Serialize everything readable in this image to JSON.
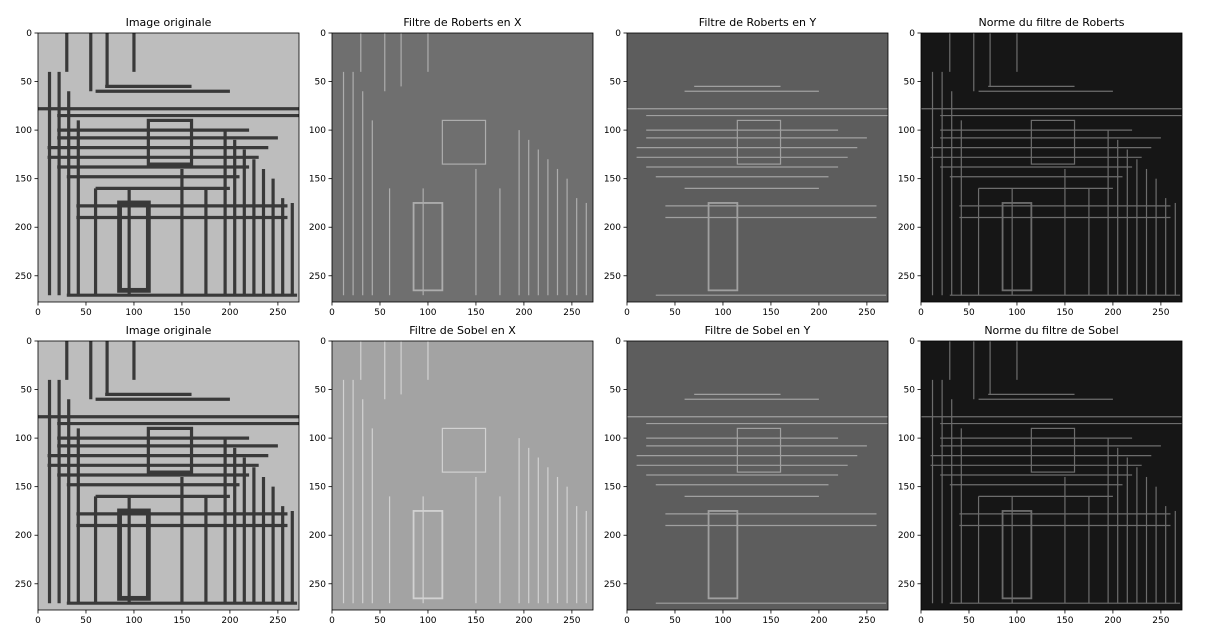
{
  "figure": {
    "rows": [
      {
        "panels": [
          {
            "title": "Image originale",
            "style": "original"
          },
          {
            "title": "Filtre de Roberts en X",
            "style": "grad-x"
          },
          {
            "title": "Filtre de Roberts en Y",
            "style": "grad-y"
          },
          {
            "title": "Norme du filtre de Roberts",
            "style": "norm"
          }
        ]
      },
      {
        "panels": [
          {
            "title": "Image originale",
            "style": "original"
          },
          {
            "title": "Filtre de Sobel en X",
            "style": "grad-x-light"
          },
          {
            "title": "Filtre de Sobel en Y",
            "style": "grad-y"
          },
          {
            "title": "Norme du filtre de Sobel",
            "style": "norm"
          }
        ]
      }
    ],
    "image_extent": {
      "width": 272,
      "height": 277
    },
    "x_ticks": [
      "0",
      "50",
      "100",
      "150",
      "200",
      "250"
    ],
    "y_ticks": [
      "0",
      "50",
      "100",
      "150",
      "200",
      "250"
    ],
    "colors": {
      "original_bg": "#bdbdbd",
      "original_dark": "#2b2b2b",
      "gradx_bg": "#6f6f6f",
      "gradx_light_bg": "#a3a3a3",
      "grady_bg": "#5d5d5d",
      "norm_bg": "#161616",
      "norm_line": "#8a8a8a"
    }
  }
}
